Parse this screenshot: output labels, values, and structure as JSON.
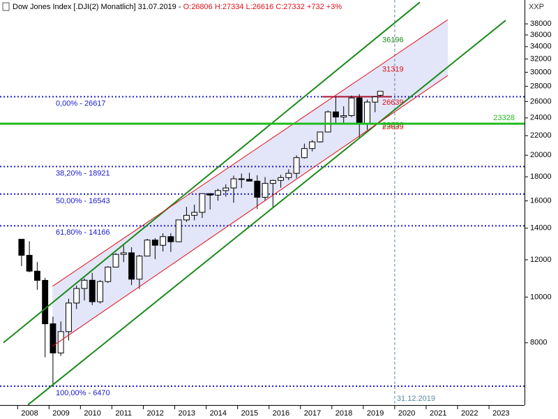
{
  "chart_data": {
    "type": "candlestick",
    "title": "Dow Jones Index [.DJI(2)  Monatlich] 31.07.2019 - ",
    "subtitle": "O:26806 H:27334 L:26616 C:27332 +732 +3%",
    "currency_label": "XXP",
    "log_scale": true,
    "xlim": [
      2007.44,
      2024.13
    ],
    "ylim": [
      5900,
      42700
    ],
    "xticks": [
      {
        "value": 2008,
        "label": "2008"
      },
      {
        "value": 2009,
        "label": "2009"
      },
      {
        "value": 2010,
        "label": "2010"
      },
      {
        "value": 2011,
        "label": "2011"
      },
      {
        "value": 2012,
        "label": "2012"
      },
      {
        "value": 2013,
        "label": "2013"
      },
      {
        "value": 2014,
        "label": "2014"
      },
      {
        "value": 2015,
        "label": "2015"
      },
      {
        "value": 2016,
        "label": "2016"
      },
      {
        "value": 2017,
        "label": "2017"
      },
      {
        "value": 2018,
        "label": "2018"
      },
      {
        "value": 2019,
        "label": "2019"
      },
      {
        "value": 2020,
        "label": "2020"
      },
      {
        "value": 2021,
        "label": "2021"
      },
      {
        "value": 2022,
        "label": "2022"
      },
      {
        "value": 2023,
        "label": "2023"
      }
    ],
    "yticks": [
      8000,
      10000,
      12000,
      14000,
      16000,
      18000,
      20000,
      22000,
      24000,
      26000,
      28000,
      30000,
      32000,
      34000,
      36000,
      38000
    ],
    "up_color": "#ffffff",
    "down_color": "#000000",
    "x": [
      2008.125,
      2008.375,
      2008.625,
      2008.875,
      2009.125,
      2009.375,
      2009.625,
      2009.875,
      2010.125,
      2010.375,
      2010.625,
      2010.875,
      2011.125,
      2011.375,
      2011.625,
      2011.875,
      2012.125,
      2012.375,
      2012.625,
      2012.875,
      2013.125,
      2013.375,
      2013.625,
      2013.875,
      2014.125,
      2014.375,
      2014.625,
      2014.875,
      2015.125,
      2015.375,
      2015.625,
      2015.875,
      2016.125,
      2016.375,
      2016.625,
      2016.875,
      2017.125,
      2017.375,
      2017.625,
      2017.875,
      2018.125,
      2018.375,
      2018.625,
      2018.875,
      2019.125,
      2019.375,
      2019.54
    ],
    "open": [
      13262,
      12263,
      11350,
      10851,
      8776,
      7609,
      8447,
      9712,
      10428,
      10857,
      9774,
      10788,
      11578,
      12320,
      12414,
      10913,
      12218,
      13212,
      12880,
      13437,
      13104,
      14579,
      14910,
      15130,
      16577,
      16458,
      16827,
      17043,
      17823,
      17776,
      17620,
      16285,
      17425,
      17685,
      17930,
      18308,
      19763,
      20663,
      21350,
      22405,
      24719,
      24103,
      24271,
      26458,
      23327,
      25929,
      26806
    ],
    "high": [
      13280,
      13136,
      11867,
      10983,
      9088,
      8877,
      9917,
      10580,
      10954,
      11258,
      10860,
      11625,
      12391,
      12876,
      12753,
      12284,
      13289,
      13338,
      13653,
      13661,
      14585,
      15542,
      15709,
      16588,
      16588,
      16978,
      17350,
      18103,
      18289,
      18351,
      18137,
      17978,
      17750,
      18168,
      18668,
      19987,
      21169,
      21535,
      22420,
      24876,
      26617,
      25402,
      26770,
      26952,
      26242,
      26696,
      27334
    ],
    "low": [
      11634,
      11288,
      10365,
      7450,
      6470,
      7500,
      8087,
      9430,
      9835,
      9614,
      9686,
      10713,
      11555,
      11862,
      10605,
      10404,
      12218,
      12035,
      12492,
      12471,
      13104,
      14434,
      14551,
      14719,
      15341,
      16015,
      16333,
      15855,
      17037,
      17630,
      15370,
      16013,
      15451,
      17063,
      17713,
      17884,
      19677,
      20379,
      21279,
      22400,
      23344,
      23344,
      24100,
      21713,
      22639,
      24680,
      26616
    ],
    "close": [
      12263,
      11350,
      10851,
      8776,
      7609,
      8447,
      9712,
      10428,
      10857,
      9774,
      10788,
      11578,
      12320,
      12414,
      10913,
      12218,
      13212,
      12880,
      13437,
      13104,
      14579,
      14910,
      15130,
      16577,
      16458,
      16827,
      17043,
      17823,
      17776,
      17620,
      16285,
      17425,
      17685,
      17930,
      18308,
      19763,
      20663,
      21350,
      22405,
      24719,
      24103,
      24271,
      26458,
      23327,
      25929,
      26600,
      27332
    ],
    "fib_color": "#1a1acc",
    "fib_levels": [
      {
        "label": "0,00% - 26617",
        "value": 26617
      },
      {
        "label": "38,20% - 18921",
        "value": 18921
      },
      {
        "label": "50,00% - 16543",
        "value": 16543
      },
      {
        "label": "61,80% - 14166",
        "value": 14166
      },
      {
        "label": "100,00% - 6470",
        "value": 6470
      }
    ],
    "support": {
      "label": "23328",
      "value": 23328,
      "color": "#22bb22"
    },
    "resistance": {
      "x": [
        2017.7,
        2019.9
      ],
      "value": 26617,
      "color": "#aa1030"
    },
    "trendlines": [
      {
        "color": "#1a8a1a",
        "x": [
          2007.55,
          2020.8
        ],
        "values": [
          8000,
          42240
        ]
      },
      {
        "color": "#1a8a1a",
        "x": [
          2008.33,
          2023.53
        ],
        "values": [
          5906,
          38650
        ]
      },
      {
        "color": "#e0101a",
        "x": [
          2009.11,
          2021.69
        ],
        "values": [
          10540,
          38790
        ]
      },
      {
        "color": "#e0101a",
        "x": [
          2009.11,
          2021.69
        ],
        "values": [
          7864,
          29530
        ]
      }
    ],
    "channel_color": "#dadcf6",
    "annotations": [
      {
        "text": "36196",
        "value": 36196,
        "color": "#1a8a1a"
      },
      {
        "text": "31319",
        "value": 31319,
        "color": "#e0101a"
      },
      {
        "text": "26639",
        "value": 26639,
        "color": "#e0101a"
      },
      {
        "text": "23836",
        "value": 23836,
        "color": "#1a8a1a"
      },
      {
        "text": "23639",
        "value": 23639,
        "color": "#e0101a"
      }
    ],
    "vline": {
      "x": 2020,
      "label": "31.12.2019",
      "color": "#5a8aa0"
    }
  }
}
